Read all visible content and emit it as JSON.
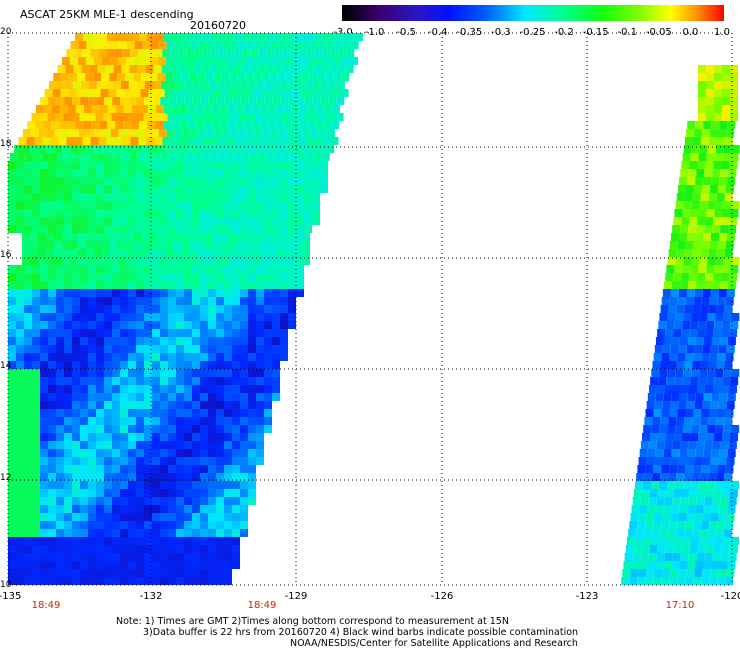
{
  "header": {
    "title": "ASCAT 25KM MLE-1 descending",
    "date": "20160720"
  },
  "colorbar": {
    "labels": [
      "-3.0",
      "-1.0",
      "-0.5",
      "-0.4",
      "-0.35",
      "-0.3",
      "-0.25",
      "-0.2",
      "-0.15",
      "-0.1",
      "-0.05",
      "0.0",
      "1.0"
    ]
  },
  "axes": {
    "y_labels": [
      "20",
      "18",
      "16",
      "14",
      "12",
      "10"
    ],
    "x_labels": [
      "-135",
      "-132",
      "-129",
      "-126",
      "-123",
      "-120"
    ],
    "lat_range": [
      10,
      20
    ],
    "lon_range": [
      -135,
      -120
    ]
  },
  "pass_times": [
    "18:49",
    "18:49",
    "17:10"
  ],
  "notes": {
    "line1": "Note: 1) Times are GMT 2)Times along bottom correspond to measurement at 15N",
    "line2": "3)Data buffer is 22 hrs from 20160720 4) Black wind barbs indicate possible contamination",
    "line3": "NOAA/NESDIS/Center for Satellite Applications and Research"
  },
  "colors": {
    "background": "#ffffff",
    "time_label": "#d02000",
    "grid": "#000000"
  }
}
